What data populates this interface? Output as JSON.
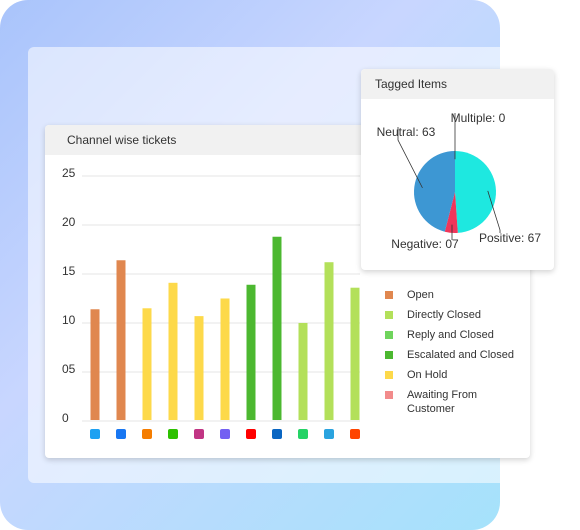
{
  "chart_data": [
    {
      "type": "bar",
      "title": "Channel wise tickets",
      "categories": [
        null,
        null,
        null,
        null,
        null,
        null,
        null,
        null,
        null,
        null,
        null
      ],
      "series": [
        {
          "name": "Open",
          "color": "#e0874f",
          "values": [
            11.3,
            16.3,
            null,
            null,
            null,
            null,
            null,
            null,
            null,
            null,
            null
          ]
        },
        {
          "name": "Directly Closed",
          "color": "#b3e05a",
          "values": [
            null,
            null,
            null,
            null,
            null,
            null,
            null,
            null,
            9.9,
            16.1,
            13.5
          ]
        },
        {
          "name": "Reply and Closed",
          "color": "#6fd45c",
          "values": [
            null,
            null,
            null,
            null,
            null,
            null,
            null,
            null,
            null,
            null,
            null
          ]
        },
        {
          "name": "Escalated and Closed",
          "color": "#4cb830",
          "values": [
            null,
            null,
            null,
            null,
            null,
            null,
            13.8,
            18.7,
            null,
            null,
            null
          ]
        },
        {
          "name": "On Hold",
          "color": "#fdd94a",
          "values": [
            null,
            null,
            11.4,
            14,
            10.6,
            12.4,
            null,
            null,
            null,
            null,
            null
          ]
        },
        {
          "name": "Awaiting From Customer",
          "color": "#f28b8b",
          "values": [
            null,
            null,
            null,
            null,
            null,
            null,
            null,
            null,
            null,
            null,
            null
          ]
        }
      ],
      "ylim": [
        0,
        25
      ],
      "yticks": [
        0,
        {
          "value": 5,
          "label": "05"
        },
        10,
        15,
        20,
        25
      ],
      "grid": true
    },
    {
      "type": "pie",
      "title": "Tagged Items",
      "values": [
        0,
        67,
        7,
        63
      ],
      "value_labels": [
        "Multiple: 0",
        "Positive: 67",
        "Negative: 07",
        "Neutral: 63"
      ],
      "colors": [
        "#9b59b6",
        "#1ee8e0",
        "#f0365a",
        "#3d97d3"
      ]
    }
  ]
}
